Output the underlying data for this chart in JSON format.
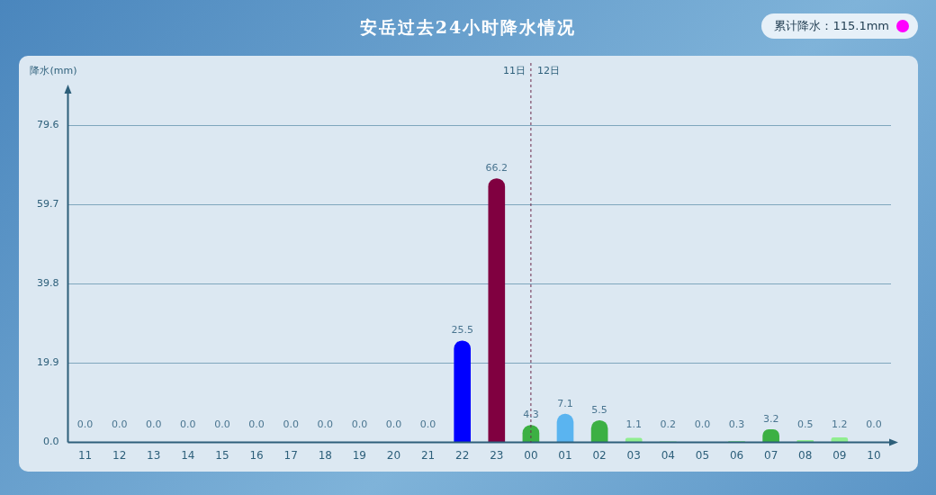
{
  "chart_data": {
    "type": "bar",
    "title": "安岳过去24小时降水情况",
    "ylabel": "降水(mm)",
    "categories": [
      "11",
      "12",
      "13",
      "14",
      "15",
      "16",
      "17",
      "18",
      "19",
      "20",
      "21",
      "22",
      "23",
      "00",
      "01",
      "02",
      "03",
      "04",
      "05",
      "06",
      "07",
      "08",
      "09",
      "10"
    ],
    "values": [
      0.0,
      0.0,
      0.0,
      0.0,
      0.0,
      0.0,
      0.0,
      0.0,
      0.0,
      0.0,
      0.0,
      25.5,
      66.2,
      4.3,
      7.1,
      5.5,
      1.1,
      0.2,
      0.0,
      0.3,
      3.2,
      0.5,
      1.2,
      0.0
    ],
    "colors": [
      "#ffffff",
      "#ffffff",
      "#ffffff",
      "#ffffff",
      "#ffffff",
      "#ffffff",
      "#ffffff",
      "#ffffff",
      "#ffffff",
      "#ffffff",
      "#ffffff",
      "#0000ff",
      "#800040",
      "#3cb043",
      "#5ab4f0",
      "#3cb043",
      "#90ee90",
      "#90ee90",
      "#ffffff",
      "#90ee90",
      "#3cb043",
      "#90ee90",
      "#90ee90",
      "#ffffff"
    ],
    "value_labels": [
      "0.0",
      "0.0",
      "0.0",
      "0.0",
      "0.0",
      "0.0",
      "0.0",
      "0.0",
      "0.0",
      "0.0",
      "0.0",
      "25.5",
      "66.2",
      "4.3",
      "7.1",
      "5.5",
      "1.1",
      "0.2",
      "0.0",
      "0.3",
      "3.2",
      "0.5",
      "1.2",
      "0.0"
    ],
    "ylim": [
      0,
      88
    ],
    "yticks": [
      {
        "value": 0,
        "label": "0.0"
      },
      19.9,
      39.8,
      59.7,
      79.6
    ],
    "grid": "y",
    "ref_lines": [
      {
        "axis": "x",
        "value": "00",
        "label": "12日",
        "line_style": "dashed"
      }
    ],
    "annotations": [
      {
        "text": "11日",
        "x": "00"
      },
      "累计降水：115.1mm"
    ]
  }
}
